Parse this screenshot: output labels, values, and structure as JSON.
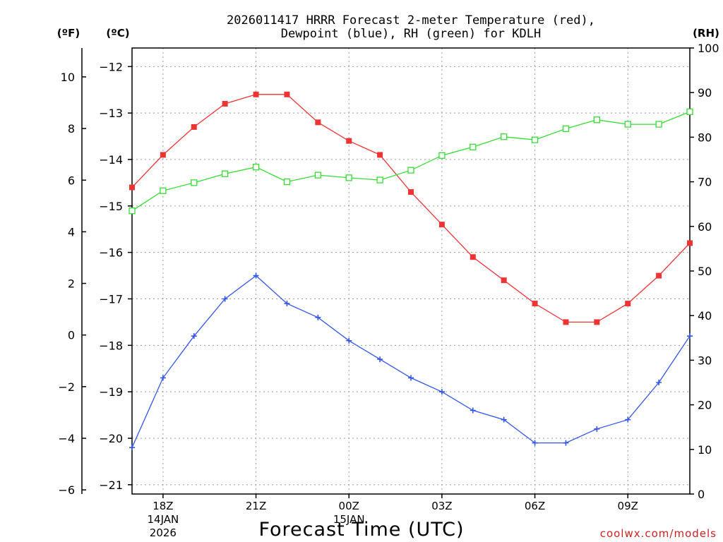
{
  "chart_data": {
    "type": "line",
    "title_line1": "2026011417 HRRR Forecast 2-meter Temperature (red),",
    "title_line2": "Dewpoint (blue), RH (green) for KDLH",
    "xlabel": "Forecast Time (UTC)",
    "credit": "coolwx.com/models",
    "units": {
      "fahrenheit": "(ºF)",
      "celsius": "(ºC)",
      "rh": "(RH)"
    },
    "x_hours": [
      17,
      18,
      19,
      20,
      21,
      22,
      23,
      24,
      25,
      26,
      27,
      28,
      29,
      30,
      31,
      32,
      33,
      34,
      35
    ],
    "xlim": [
      17,
      35
    ],
    "x_ticks": [
      {
        "hour": 18,
        "label": "18Z",
        "sub1": "14JAN",
        "sub2": "2026"
      },
      {
        "hour": 21,
        "label": "21Z",
        "sub1": "",
        "sub2": ""
      },
      {
        "hour": 24,
        "label": "00Z",
        "sub1": "15JAN",
        "sub2": ""
      },
      {
        "hour": 27,
        "label": "03Z",
        "sub1": "",
        "sub2": ""
      },
      {
        "hour": 30,
        "label": "06Z",
        "sub1": "",
        "sub2": ""
      },
      {
        "hour": 33,
        "label": "09Z",
        "sub1": "",
        "sub2": ""
      }
    ],
    "celsius_ylim": [
      -21.2,
      -11.6
    ],
    "celsius_ticks": [
      -12,
      -13,
      -14,
      -15,
      -16,
      -17,
      -18,
      -19,
      -20,
      -21
    ],
    "celsius_tick_labels": [
      "−12",
      "−13",
      "−14",
      "−15",
      "−16",
      "−17",
      "−18",
      "−19",
      "−20",
      "−21"
    ],
    "fahrenheit_ticks": [
      10,
      8,
      6,
      4,
      2,
      0,
      -2,
      -4,
      -6
    ],
    "fahrenheit_tick_labels": [
      "10",
      "8",
      "6",
      "4",
      "2",
      "0",
      "−2",
      "−4",
      "−6"
    ],
    "rh_ylim": [
      0,
      100
    ],
    "rh_ticks": [
      0,
      10,
      20,
      30,
      40,
      50,
      60,
      70,
      80,
      90,
      100
    ],
    "rh_tick_labels": [
      "0",
      "10",
      "20",
      "30",
      "40",
      "50",
      "60",
      "70",
      "80",
      "90",
      "100"
    ],
    "series": [
      {
        "name": "2-meter Temperature",
        "unit": "C",
        "color": "#ee3333",
        "marker": "filled-square",
        "values": [
          -14.6,
          -13.9,
          -13.3,
          -12.8,
          -12.6,
          -12.6,
          -13.2,
          -13.6,
          -13.9,
          -14.7,
          -15.4,
          -16.1,
          -16.6,
          -17.1,
          -17.5,
          -17.5,
          -17.1,
          -16.5,
          -15.8
        ]
      },
      {
        "name": "Dewpoint",
        "unit": "C",
        "color": "#3355ee",
        "marker": "plus",
        "values": [
          -20.2,
          -18.7,
          -17.8,
          -17.0,
          -16.5,
          -17.1,
          -17.4,
          -17.9,
          -18.3,
          -18.7,
          -19.0,
          -19.4,
          -19.6,
          -20.1,
          -20.1,
          -19.8,
          -19.6,
          -18.8,
          -17.8
        ]
      },
      {
        "name": "Relative Humidity",
        "unit": "%",
        "color": "#33dd33",
        "marker": "open-square",
        "values": [
          63.5,
          68,
          69.8,
          71.8,
          73.3,
          70,
          71.5,
          70.9,
          70.4,
          72.6,
          75.9,
          77.8,
          80.1,
          79.4,
          81.9,
          83.9,
          82.9,
          82.9,
          85.7
        ]
      }
    ]
  }
}
